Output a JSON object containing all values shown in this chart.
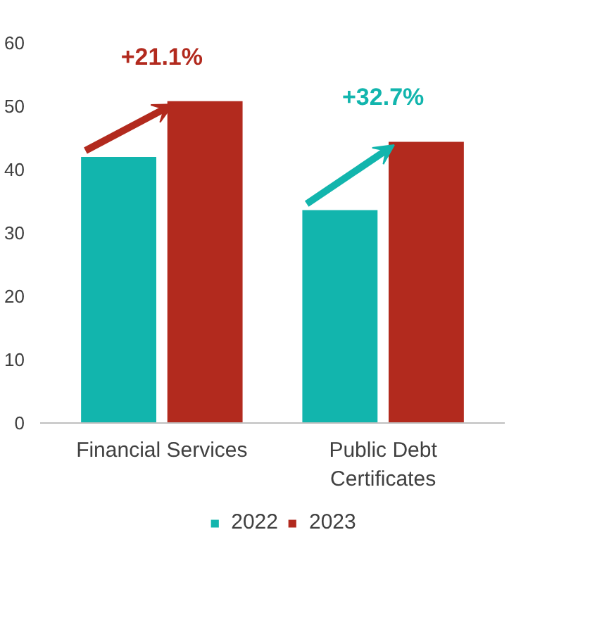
{
  "chart_data": {
    "type": "bar",
    "categories": [
      "Financial Services",
      "Public Debt Certificates"
    ],
    "series": [
      {
        "name": "2022",
        "color": "#12b5ad",
        "values": [
          42,
          33.6
        ]
      },
      {
        "name": "2023",
        "color": "#b22a1e",
        "values": [
          50.8,
          44.4
        ]
      }
    ],
    "ylim": [
      0,
      60
    ],
    "yticks": [
      0,
      10,
      20,
      30,
      40,
      50,
      60
    ],
    "grid": false,
    "legend": "bottom",
    "annotations": [
      "+21.1%",
      "+32.7%"
    ]
  }
}
